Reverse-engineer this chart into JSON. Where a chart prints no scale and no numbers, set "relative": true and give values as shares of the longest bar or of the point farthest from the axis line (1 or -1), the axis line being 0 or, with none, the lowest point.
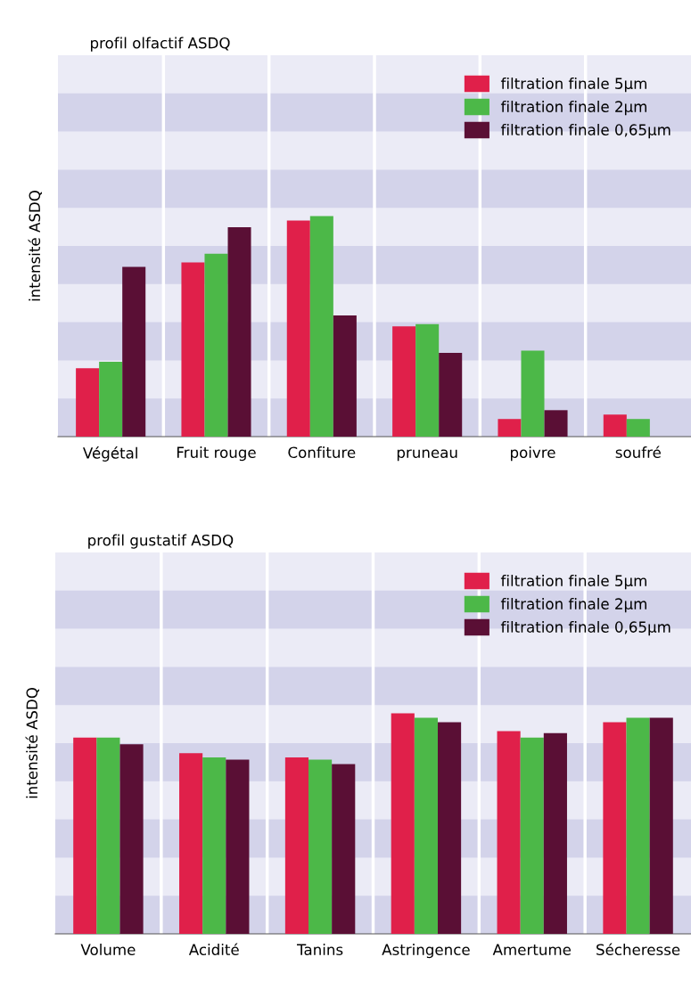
{
  "chart_data": [
    {
      "type": "bar",
      "title": "profil olfactif ASDQ",
      "ylabel": "intensité ASDQ",
      "relative": true,
      "grid": true,
      "legend": "top right",
      "categories": [
        "Végétal",
        "Fruit rouge",
        "Confiture",
        "pruneau",
        "poivre",
        "soufré"
      ],
      "series": [
        {
          "name": "filtration finale 5µm",
          "color": "#e0204a",
          "values": [
            0.31,
            0.79,
            0.98,
            0.5,
            0.08,
            0.1
          ]
        },
        {
          "name": "filtration finale 2µm",
          "color": "#4cb848",
          "values": [
            0.34,
            0.83,
            1,
            0.51,
            0.39,
            0.08
          ]
        },
        {
          "name": "filtration finale 0,65µm",
          "color": "#5a0f35",
          "values": [
            0.77,
            0.95,
            0.55,
            0.38,
            0.12,
            null
          ]
        }
      ]
    },
    {
      "type": "bar",
      "title": "profil gustatif ASDQ",
      "ylabel": "intensité ASDQ",
      "relative": true,
      "grid": true,
      "legend": "top right",
      "categories": [
        "Volume",
        "Acidité",
        "Tanins",
        "Astringence",
        "Amertume",
        "Sécheresse"
      ],
      "series": [
        {
          "name": "filtration finale 5µm",
          "color": "#e0204a",
          "values": [
            0.89,
            0.82,
            0.8,
            1,
            0.92,
            0.96
          ]
        },
        {
          "name": "filtration finale 2µm",
          "color": "#4cb848",
          "values": [
            0.89,
            0.8,
            0.79,
            0.98,
            0.89,
            0.98
          ]
        },
        {
          "name": "filtration finale 0,65µm",
          "color": "#5a0f35",
          "values": [
            0.86,
            0.79,
            0.77,
            0.96,
            0.91,
            0.98
          ]
        }
      ]
    }
  ]
}
